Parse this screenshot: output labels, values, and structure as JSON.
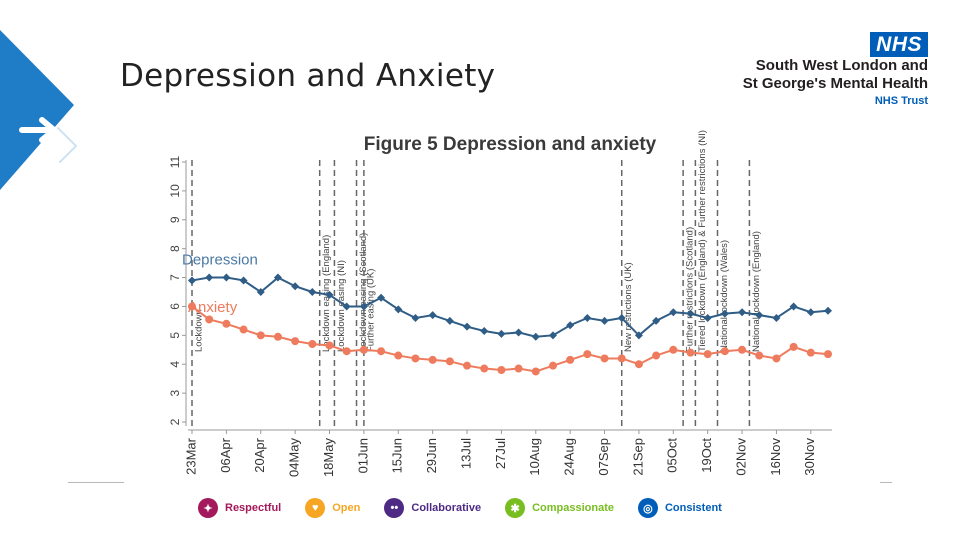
{
  "slide": {
    "title": "Depression and Anxiety"
  },
  "logo": {
    "badge": "NHS",
    "line1": "South West London and",
    "line2": "St George's Mental Health",
    "line3": "NHS Trust"
  },
  "values": [
    {
      "label": "Respectful",
      "color": "#a3195b",
      "icon": "handshake-icon"
    },
    {
      "label": "Open",
      "color": "#f6a623",
      "icon": "heart-icon"
    },
    {
      "label": "Collaborative",
      "color": "#4e2a84",
      "icon": "people-icon"
    },
    {
      "label": "Compassionate",
      "color": "#78be20",
      "icon": "hands-icon"
    },
    {
      "label": "Consistent",
      "color": "#005eb8",
      "icon": "target-icon"
    }
  ],
  "chart_data": {
    "type": "line",
    "title": "Figure 5 Depression and anxiety",
    "x": [
      "23Mar",
      "30Mar",
      "06Apr",
      "13Apr",
      "20Apr",
      "27Apr",
      "04May",
      "11May",
      "18May",
      "25May",
      "01Jun",
      "08Jun",
      "15Jun",
      "22Jun",
      "29Jun",
      "06Jul",
      "13Jul",
      "20Jul",
      "27Jul",
      "03Aug",
      "10Aug",
      "17Aug",
      "24Aug",
      "31Aug",
      "07Sep",
      "14Sep",
      "21Sep",
      "28Sep",
      "05Oct",
      "12Oct",
      "19Oct",
      "26Oct",
      "02Nov",
      "09Nov",
      "16Nov",
      "23Nov",
      "30Nov",
      "07Dec"
    ],
    "xticks": [
      "23Mar",
      "06Apr",
      "20Apr",
      "04May",
      "18May",
      "01Jun",
      "15Jun",
      "29Jun",
      "13Jul",
      "27Jul",
      "10Aug",
      "24Aug",
      "07Sep",
      "21Sep",
      "05Oct",
      "19Oct",
      "02Nov",
      "16Nov",
      "30Nov"
    ],
    "ylim": [
      2,
      11
    ],
    "yticks": [
      2,
      3,
      4,
      5,
      6,
      7,
      8,
      9,
      10,
      11
    ],
    "grid": false,
    "series": [
      {
        "name": "Depression",
        "color": "#2f5d86",
        "values": [
          6.9,
          7.0,
          7.0,
          6.9,
          6.5,
          7.0,
          6.7,
          6.5,
          6.4,
          6.0,
          6.0,
          6.3,
          5.9,
          5.6,
          5.7,
          5.5,
          5.3,
          5.15,
          5.05,
          5.1,
          4.95,
          5.0,
          5.35,
          5.6,
          5.5,
          5.6,
          5.0,
          5.5,
          5.8,
          5.75,
          5.6,
          5.75,
          5.8,
          5.7,
          5.6,
          6.0,
          5.8,
          5.85
        ]
      },
      {
        "name": "Anxiety",
        "color": "#ee7b5d",
        "values": [
          6.0,
          5.55,
          5.4,
          5.2,
          5.0,
          4.95,
          4.8,
          4.7,
          4.65,
          4.45,
          4.5,
          4.45,
          4.3,
          4.2,
          4.15,
          4.1,
          3.95,
          3.85,
          3.8,
          3.85,
          3.75,
          3.95,
          4.15,
          4.35,
          4.2,
          4.2,
          4.0,
          4.3,
          4.5,
          4.4,
          4.35,
          4.45,
          4.5,
          4.3,
          4.2,
          4.6,
          4.4,
          4.35
        ]
      }
    ],
    "events": [
      {
        "date": "23Mar",
        "label": "Lockdown"
      },
      {
        "date": "14May",
        "label": "Lockdown easing (England)"
      },
      {
        "date": "20May",
        "label": "Lockdown easing (NI)"
      },
      {
        "date": "29May",
        "label": "Lockdown easing (Scotland)"
      },
      {
        "date": "01Jun",
        "label": "Further easing (UK)"
      },
      {
        "date": "14Sep",
        "label": "New restrictions (UK)"
      },
      {
        "date": "09Oct",
        "label": "Further restrictions (Scotland)"
      },
      {
        "date": "14Oct",
        "label": "Tiered lockdown (England) & Further restrictions (NI)"
      },
      {
        "date": "23Oct",
        "label": "National lockdown (Wales)"
      },
      {
        "date": "05Nov",
        "label": "National lockdown (England)"
      }
    ]
  }
}
